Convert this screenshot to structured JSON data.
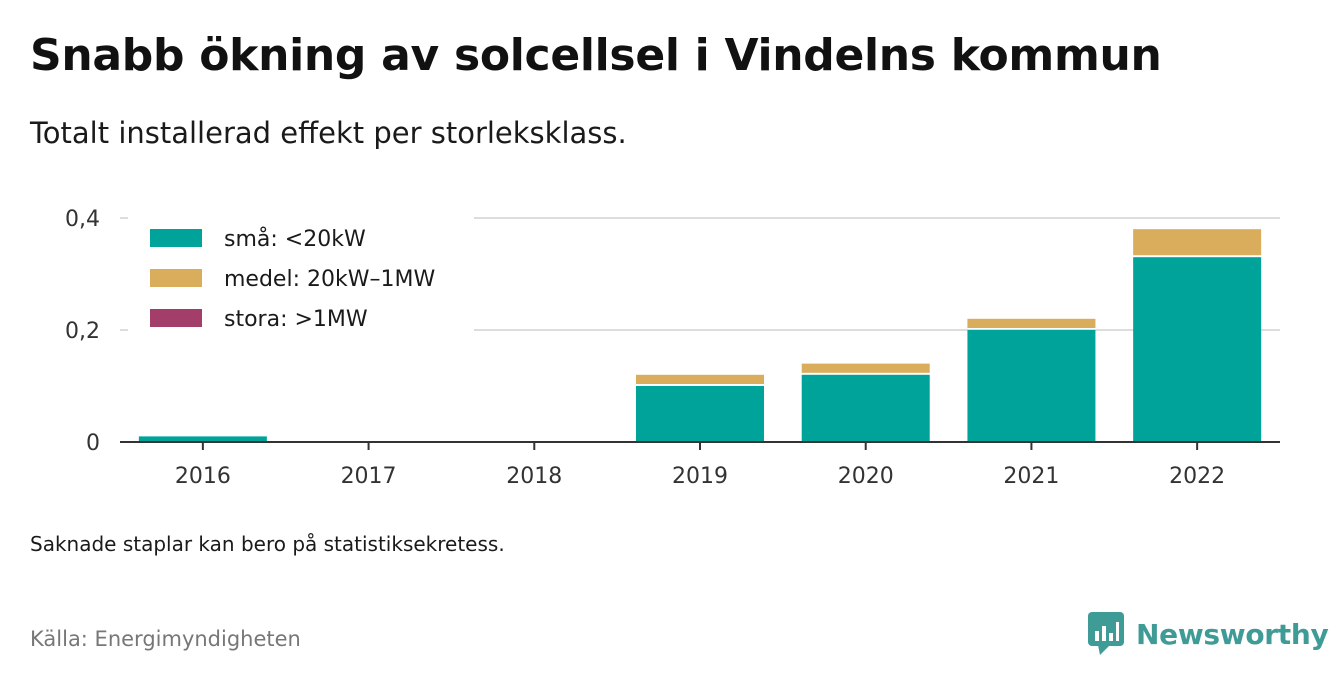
{
  "title": "Snabb ökning av solcellsel i Vindelns kommun",
  "subtitle": "Totalt installerad effekt per storleksklass.",
  "note": "Saknade staplar kan bero på statistiksekretess.",
  "source": "Källa: Energimyndigheten",
  "brand": {
    "name": "Newsworthy",
    "color": "#3f9b96",
    "icon": "bar-chart-speech-bubble-icon"
  },
  "colors": {
    "small": "#00a39a",
    "medium": "#d9ad5b",
    "large": "#a33e6a",
    "grid": "#dddddd",
    "axis": "#333333"
  },
  "chart_data": {
    "type": "bar",
    "stacked": true,
    "categories": [
      "2016",
      "2017",
      "2018",
      "2019",
      "2020",
      "2021",
      "2022"
    ],
    "series": [
      {
        "name": "små: <20kW",
        "color": "#00a39a",
        "values": [
          0.01,
          0,
          0,
          0.1,
          0.12,
          0.2,
          0.33
        ]
      },
      {
        "name": "medel: 20kW–1MW",
        "color": "#d9ad5b",
        "values": [
          0,
          0,
          0,
          0.02,
          0.02,
          0.02,
          0.05
        ]
      },
      {
        "name": "stora: >1MW",
        "color": "#a33e6a",
        "values": [
          0,
          0,
          0,
          0,
          0,
          0,
          0
        ]
      }
    ],
    "ylim": [
      0,
      0.4
    ],
    "yticks": [
      0,
      0.2,
      0.4
    ],
    "ytick_labels": [
      "0",
      "0,2",
      "0,4"
    ],
    "grid": true,
    "legend_position": "top-left"
  }
}
